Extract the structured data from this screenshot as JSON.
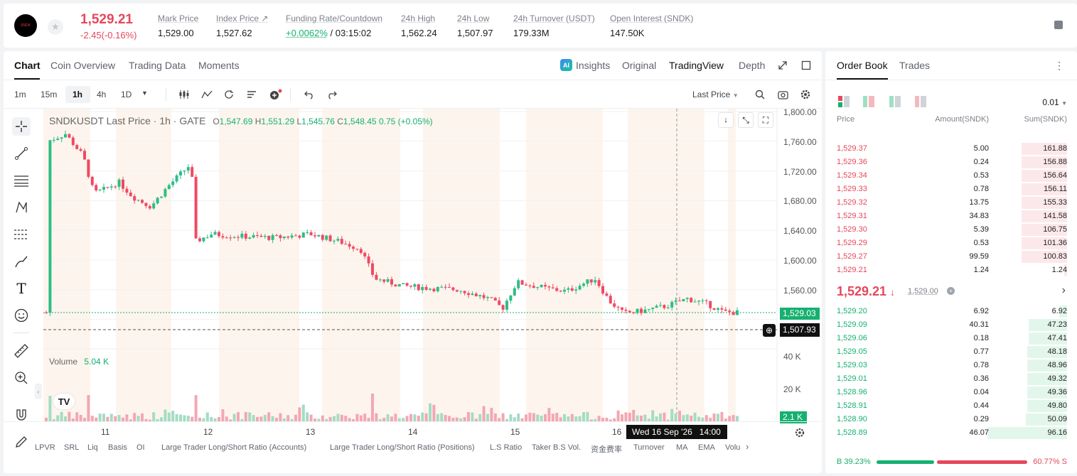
{
  "header": {
    "logo_text": "SNDK",
    "last_price": "1,529.21",
    "change": "-2.45(-0.16%)",
    "stats": [
      {
        "label": "Mark Price",
        "value": "1,529.00"
      },
      {
        "label": "Index Price ↗",
        "value": "1,527.62"
      },
      {
        "label": "Funding Rate/Countdown",
        "value": "+0.0062%",
        "value2": "/ 03:15:02"
      },
      {
        "label": "24h High",
        "value": "1,562.24"
      },
      {
        "label": "24h Low",
        "value": "1,507.97"
      },
      {
        "label": "24h Turnover (USDT)",
        "value": "179.33M"
      },
      {
        "label": "Open Interest (SNDK)",
        "value": "147.50K"
      }
    ]
  },
  "chart_tabs": [
    "Chart",
    "Coin Overview",
    "Trading Data",
    "Moments"
  ],
  "view_tabs": {
    "insights": "Insights",
    "original": "Original",
    "tradingview": "TradingView",
    "depth": "Depth"
  },
  "intervals": [
    "1m",
    "15m",
    "1h",
    "4h",
    "1D"
  ],
  "price_type": "Last Price",
  "legend": {
    "symbol": "SNDKUSDT Last Price · 1h · GATE",
    "o_label": "O",
    "o": "1,547.69",
    "h_label": "H",
    "h": "1,551.29",
    "l_label": "L",
    "l": "1,545.76",
    "c_label": "C",
    "c": "1,548.45",
    "chg": "0.75 (+0.05%)"
  },
  "volume_legend": {
    "label": "Volume",
    "value": "5.04 K"
  },
  "price_axis": [
    "1,800.00",
    "1,760.00",
    "1,720.00",
    "1,680.00",
    "1,640.00",
    "1,600.00",
    "1,560.00"
  ],
  "vol_axis": [
    "40 K",
    "20 K"
  ],
  "price_tags": {
    "last": "1,529.03",
    "cross": "1,507.93",
    "vol": "2.1 K"
  },
  "date_axis": [
    "11",
    "12",
    "13",
    "14",
    "15",
    "16"
  ],
  "crosshair_time": "Wed 16 Sep '26   14:00",
  "indicators": [
    "LPVR",
    "SRL",
    "Liq",
    "Basis",
    "OI",
    "Large Trader Long/Short Ratio (Accounts)",
    "Large Trader Long/Short Ratio (Positions)",
    "L.S Ratio",
    "Taker B.S Vol.",
    "资金费率",
    "Turnover",
    "MA",
    "EMA",
    "Volu"
  ],
  "orderbook": {
    "tabs": [
      "Order Book",
      "Trades"
    ],
    "precision": "0.01",
    "headers": {
      "price": "Price",
      "amount": "Amount(SNDK)",
      "sum": "Sum(SNDK)"
    },
    "asks": [
      {
        "price": "1,529.37",
        "amount": "5.00",
        "sum": "161.88",
        "depth": 0.34
      },
      {
        "price": "1,529.36",
        "amount": "0.24",
        "sum": "156.88",
        "depth": 0.34
      },
      {
        "price": "1,529.34",
        "amount": "0.53",
        "sum": "156.64",
        "depth": 0.34
      },
      {
        "price": "1,529.33",
        "amount": "0.78",
        "sum": "156.11",
        "depth": 0.34
      },
      {
        "price": "1,529.32",
        "amount": "13.75",
        "sum": "155.33",
        "depth": 0.34
      },
      {
        "price": "1,529.31",
        "amount": "34.83",
        "sum": "141.58",
        "depth": 0.34
      },
      {
        "price": "1,529.30",
        "amount": "5.39",
        "sum": "106.75",
        "depth": 0.34
      },
      {
        "price": "1,529.29",
        "amount": "0.53",
        "sum": "101.36",
        "depth": 0.34
      },
      {
        "price": "1,529.27",
        "amount": "99.59",
        "sum": "100.83",
        "depth": 0.34
      },
      {
        "price": "1,529.21",
        "amount": "1.24",
        "sum": "1.24",
        "depth": 0.02
      }
    ],
    "mid_price": "1,529.21",
    "mid_arrow": "↓",
    "mid_mark": "1,529.00",
    "bids": [
      {
        "price": "1,529.20",
        "amount": "6.92",
        "sum": "6.92",
        "depth": 0.06
      },
      {
        "price": "1,529.09",
        "amount": "40.31",
        "sum": "47.23",
        "depth": 0.29
      },
      {
        "price": "1,529.06",
        "amount": "0.18",
        "sum": "47.41",
        "depth": 0.29
      },
      {
        "price": "1,529.05",
        "amount": "0.77",
        "sum": "48.18",
        "depth": 0.3
      },
      {
        "price": "1,529.03",
        "amount": "0.78",
        "sum": "48.96",
        "depth": 0.3
      },
      {
        "price": "1,529.01",
        "amount": "0.36",
        "sum": "49.32",
        "depth": 0.3
      },
      {
        "price": "1,528.96",
        "amount": "0.04",
        "sum": "49.36",
        "depth": 0.3
      },
      {
        "price": "1,528.91",
        "amount": "0.44",
        "sum": "49.80",
        "depth": 0.3
      },
      {
        "price": "1,528.90",
        "amount": "0.29",
        "sum": "50.09",
        "depth": 0.31
      },
      {
        "price": "1,528.89",
        "amount": "46.07",
        "sum": "96.16",
        "depth": 0.6
      }
    ],
    "buy_ratio": "B 39.23%",
    "sell_ratio": "60.77% S",
    "buy_pct": 39.23
  }
}
